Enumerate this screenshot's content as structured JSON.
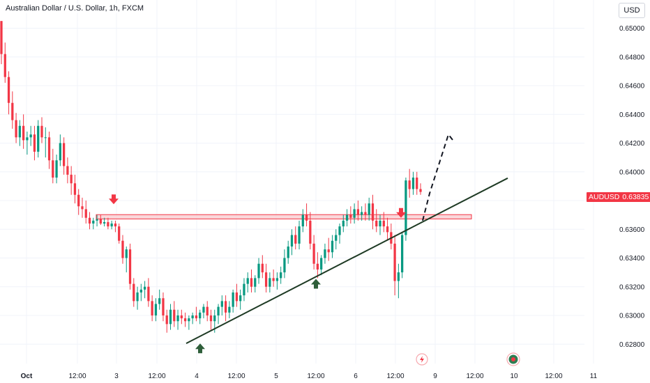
{
  "header": {
    "title": "Australian Dollar / U.S. Dollar, 1h, FXCM",
    "currency_button": "USD"
  },
  "price_tag": {
    "symbol": "AUDUSD",
    "price": "0.63835",
    "color": "#f23645"
  },
  "colors": {
    "bull": "#089981",
    "bear": "#f23645",
    "grid": "#f0f3fa",
    "zone_fill": "#f8c9cd",
    "zone_border": "#f23645",
    "arrow_down": "#f23645",
    "arrow_up": "#2e5e3a",
    "trendline": "#1e3a24",
    "projection": "#131722"
  },
  "icons": [
    "lightning-icon",
    "economic-event-icon"
  ],
  "chart_data": {
    "type": "candlestick",
    "title": "Australian Dollar / U.S. Dollar, 1h, FXCM",
    "xlabel": "",
    "ylabel": "",
    "ylim": [
      0.6272,
      0.6515
    ],
    "x_tick_labels": [
      "Oct",
      "12:00",
      "3",
      "12:00",
      "4",
      "12:00",
      "5",
      "12:00",
      "6",
      "12:00",
      "9",
      "12:00",
      "10",
      "12:00",
      "11"
    ],
    "y_tick_labels": [
      "0.62800",
      "0.63000",
      "0.63200",
      "0.63400",
      "0.63600",
      "0.63800",
      "0.64000",
      "0.64200",
      "0.64400",
      "0.64600",
      "0.64800",
      "0.65000"
    ],
    "grid": true,
    "resistance_zone": [
      0.63672,
      0.63702
    ],
    "trendline": {
      "start": {
        "index": 0,
        "value": 0.6282
      },
      "end": {
        "index": 1,
        "value": 0.6399
      }
    },
    "projection_path": [
      0.6366,
      0.6385,
      0.6426,
      0.6421
    ],
    "markers": [
      {
        "type": "arrow-down",
        "value": 0.6376
      },
      {
        "type": "arrow-up",
        "value": 0.628
      },
      {
        "type": "arrow-up",
        "value": 0.6325
      },
      {
        "type": "arrow-down",
        "value": 0.6368
      }
    ],
    "candles": [
      [
        0.6505,
        0.6505,
        0.6475,
        0.6482
      ],
      [
        0.6482,
        0.649,
        0.6462,
        0.6466
      ],
      [
        0.6466,
        0.647,
        0.644,
        0.6448
      ],
      [
        0.6448,
        0.6456,
        0.643,
        0.6436
      ],
      [
        0.6436,
        0.6441,
        0.642,
        0.6424
      ],
      [
        0.6424,
        0.6436,
        0.6418,
        0.6432
      ],
      [
        0.6432,
        0.644,
        0.6416,
        0.6422
      ],
      [
        0.6422,
        0.6428,
        0.6412,
        0.6424
      ],
      [
        0.6424,
        0.6432,
        0.6418,
        0.6426
      ],
      [
        0.6426,
        0.6432,
        0.6408,
        0.6414
      ],
      [
        0.6414,
        0.6436,
        0.641,
        0.6432
      ],
      [
        0.6432,
        0.6438,
        0.642,
        0.6424
      ],
      [
        0.6424,
        0.6431,
        0.641,
        0.6424
      ],
      [
        0.6424,
        0.6428,
        0.6402,
        0.6408
      ],
      [
        0.6408,
        0.6416,
        0.6392,
        0.6396
      ],
      [
        0.6396,
        0.6412,
        0.6392,
        0.6408
      ],
      [
        0.6408,
        0.6426,
        0.6404,
        0.642
      ],
      [
        0.642,
        0.6424,
        0.6398,
        0.6404
      ],
      [
        0.6404,
        0.641,
        0.6392,
        0.6398
      ],
      [
        0.6398,
        0.6404,
        0.6384,
        0.6392
      ],
      [
        0.6392,
        0.6398,
        0.6378,
        0.6384
      ],
      [
        0.6384,
        0.6388,
        0.637,
        0.6376
      ],
      [
        0.6376,
        0.6382,
        0.6368,
        0.6374
      ],
      [
        0.6374,
        0.638,
        0.6364,
        0.6368
      ],
      [
        0.6368,
        0.6372,
        0.636,
        0.6364
      ],
      [
        0.6364,
        0.6368,
        0.636,
        0.6366
      ],
      [
        0.6366,
        0.637,
        0.6362,
        0.6367
      ],
      [
        0.6367,
        0.637,
        0.6363,
        0.6364
      ],
      [
        0.6364,
        0.6368,
        0.6362,
        0.6365
      ],
      [
        0.6365,
        0.6368,
        0.636,
        0.6362
      ],
      [
        0.6362,
        0.6366,
        0.636,
        0.6364
      ],
      [
        0.6364,
        0.6366,
        0.6358,
        0.6362
      ],
      [
        0.6362,
        0.6364,
        0.635,
        0.6352
      ],
      [
        0.6352,
        0.6356,
        0.6336,
        0.634
      ],
      [
        0.634,
        0.6348,
        0.633,
        0.6346
      ],
      [
        0.6346,
        0.635,
        0.6318,
        0.6322
      ],
      [
        0.6322,
        0.6326,
        0.6306,
        0.631
      ],
      [
        0.631,
        0.632,
        0.6304,
        0.6316
      ],
      [
        0.6316,
        0.6322,
        0.631,
        0.6318
      ],
      [
        0.6318,
        0.6324,
        0.6312,
        0.632
      ],
      [
        0.632,
        0.6326,
        0.6306,
        0.631
      ],
      [
        0.631,
        0.6314,
        0.6296,
        0.63
      ],
      [
        0.63,
        0.6312,
        0.6296,
        0.6308
      ],
      [
        0.6308,
        0.6318,
        0.6304,
        0.6312
      ],
      [
        0.6312,
        0.6316,
        0.6296,
        0.63
      ],
      [
        0.63,
        0.6304,
        0.6288,
        0.6294
      ],
      [
        0.6294,
        0.6308,
        0.629,
        0.6304
      ],
      [
        0.6304,
        0.631,
        0.6292,
        0.6296
      ],
      [
        0.6296,
        0.6304,
        0.629,
        0.63
      ],
      [
        0.63,
        0.6304,
        0.6294,
        0.6298
      ],
      [
        0.6298,
        0.6302,
        0.6292,
        0.6296
      ],
      [
        0.6296,
        0.63,
        0.629,
        0.6298
      ],
      [
        0.6298,
        0.6302,
        0.6294,
        0.63
      ],
      [
        0.63,
        0.6306,
        0.6296,
        0.6298
      ],
      [
        0.6298,
        0.6304,
        0.6294,
        0.6302
      ],
      [
        0.6302,
        0.6308,
        0.6298,
        0.6306
      ],
      [
        0.6306,
        0.631,
        0.6296,
        0.63
      ],
      [
        0.63,
        0.6304,
        0.629,
        0.6296
      ],
      [
        0.6296,
        0.6304,
        0.6288,
        0.63
      ],
      [
        0.63,
        0.6308,
        0.6294,
        0.6306
      ],
      [
        0.6306,
        0.6314,
        0.63,
        0.631
      ],
      [
        0.631,
        0.6314,
        0.6296,
        0.6302
      ],
      [
        0.6302,
        0.631,
        0.6298,
        0.6306
      ],
      [
        0.6306,
        0.6318,
        0.6302,
        0.6316
      ],
      [
        0.6316,
        0.6322,
        0.6306,
        0.631
      ],
      [
        0.631,
        0.6318,
        0.6304,
        0.6314
      ],
      [
        0.6314,
        0.6326,
        0.631,
        0.6322
      ],
      [
        0.6322,
        0.633,
        0.6316,
        0.6326
      ],
      [
        0.6326,
        0.6332,
        0.6316,
        0.632
      ],
      [
        0.632,
        0.6328,
        0.6316,
        0.6326
      ],
      [
        0.6326,
        0.634,
        0.6322,
        0.6336
      ],
      [
        0.6336,
        0.6342,
        0.6326,
        0.633
      ],
      [
        0.633,
        0.6336,
        0.6316,
        0.632
      ],
      [
        0.632,
        0.633,
        0.6316,
        0.6326
      ],
      [
        0.6326,
        0.6332,
        0.632,
        0.6324
      ],
      [
        0.6324,
        0.633,
        0.6318,
        0.6326
      ],
      [
        0.6326,
        0.6334,
        0.6322,
        0.633
      ],
      [
        0.633,
        0.6346,
        0.6326,
        0.634
      ],
      [
        0.634,
        0.6352,
        0.6336,
        0.6348
      ],
      [
        0.6348,
        0.636,
        0.6342,
        0.6356
      ],
      [
        0.6356,
        0.6362,
        0.6346,
        0.635
      ],
      [
        0.635,
        0.6366,
        0.6346,
        0.6362
      ],
      [
        0.6362,
        0.6374,
        0.6358,
        0.637
      ],
      [
        0.637,
        0.6378,
        0.6362,
        0.6366
      ],
      [
        0.6366,
        0.6372,
        0.6346,
        0.635
      ],
      [
        0.635,
        0.6356,
        0.6332,
        0.6336
      ],
      [
        0.6336,
        0.6344,
        0.6326,
        0.6332
      ],
      [
        0.6332,
        0.6342,
        0.6328,
        0.634
      ],
      [
        0.634,
        0.635,
        0.6336,
        0.6346
      ],
      [
        0.6346,
        0.6354,
        0.6338,
        0.6344
      ],
      [
        0.6344,
        0.6356,
        0.634,
        0.6352
      ],
      [
        0.6352,
        0.636,
        0.6346,
        0.6356
      ],
      [
        0.6356,
        0.6364,
        0.635,
        0.6362
      ],
      [
        0.6362,
        0.637,
        0.6358,
        0.6366
      ],
      [
        0.6366,
        0.6374,
        0.6362,
        0.637
      ],
      [
        0.637,
        0.6376,
        0.6364,
        0.6368
      ],
      [
        0.6368,
        0.6378,
        0.6364,
        0.6374
      ],
      [
        0.6374,
        0.638,
        0.6366,
        0.637
      ],
      [
        0.637,
        0.6376,
        0.6366,
        0.6372
      ],
      [
        0.6372,
        0.6378,
        0.6366,
        0.637
      ],
      [
        0.637,
        0.6382,
        0.6366,
        0.6378
      ],
      [
        0.6378,
        0.6384,
        0.636,
        0.6366
      ],
      [
        0.6366,
        0.6374,
        0.6358,
        0.6362
      ],
      [
        0.6362,
        0.637,
        0.6356,
        0.6366
      ],
      [
        0.6366,
        0.6372,
        0.6358,
        0.6362
      ],
      [
        0.6362,
        0.6368,
        0.6352,
        0.6358
      ],
      [
        0.6358,
        0.6364,
        0.6346,
        0.635
      ],
      [
        0.635,
        0.6356,
        0.6314,
        0.6324
      ],
      [
        0.6324,
        0.6336,
        0.6312,
        0.633
      ],
      [
        0.633,
        0.6358,
        0.6326,
        0.6356
      ],
      [
        0.6356,
        0.6396,
        0.6352,
        0.6394
      ],
      [
        0.6394,
        0.6402,
        0.6382,
        0.6388
      ],
      [
        0.6388,
        0.64,
        0.6384,
        0.6396
      ],
      [
        0.6396,
        0.64,
        0.6384,
        0.6388
      ],
      [
        0.6388,
        0.6392,
        0.6384,
        0.6386
      ]
    ]
  }
}
